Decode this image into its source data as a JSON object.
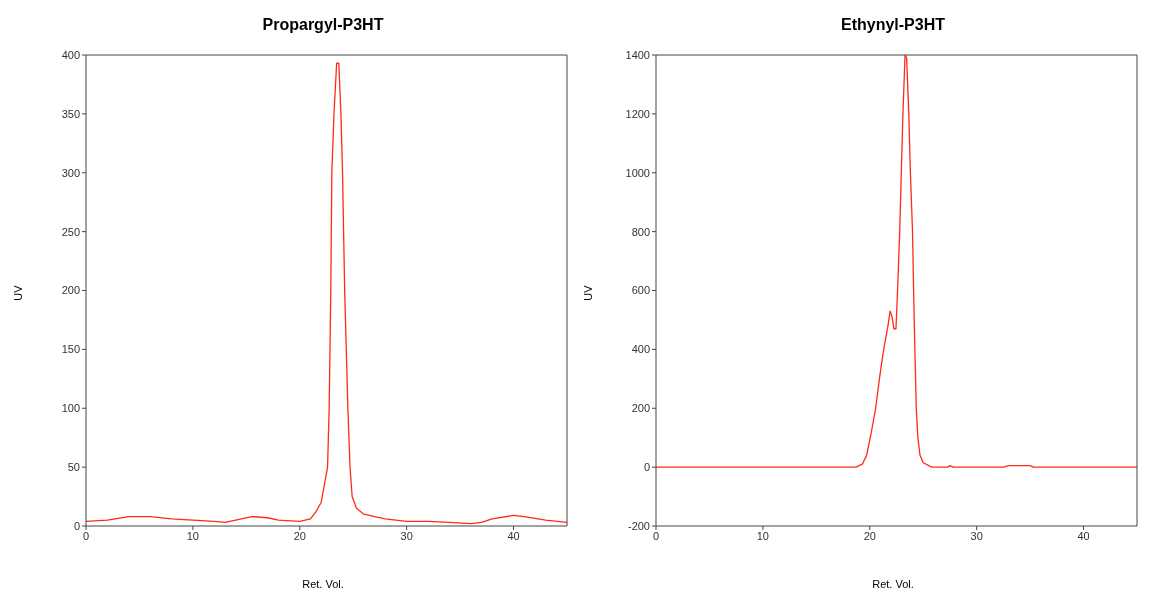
{
  "chart_data": [
    {
      "type": "line",
      "title": "Propargyl-P3HT",
      "xlabel": "Ret. Vol.",
      "ylabel": "UV",
      "xlim": [
        0,
        45
      ],
      "xticks": [
        0,
        10,
        20,
        30,
        40
      ],
      "ylim": [
        0,
        400
      ],
      "yticks": [
        0,
        50,
        100,
        150,
        200,
        250,
        300,
        350,
        400
      ],
      "marker": "none",
      "line_style": "solid",
      "series": [
        {
          "color": "#ff2a1a",
          "x": [
            0,
            2,
            4,
            6,
            8,
            10,
            12,
            13,
            14,
            15.5,
            17,
            18,
            20,
            21,
            21.5,
            22,
            22.3,
            22.6,
            22.75,
            22.9,
            23.0,
            23.2,
            23.45,
            23.65,
            23.85,
            24.0,
            24.2,
            24.5,
            24.7,
            24.9,
            25.3,
            26,
            27,
            28,
            30,
            32,
            34,
            36,
            37,
            38,
            40,
            41,
            43,
            45
          ],
          "values": [
            4,
            5,
            8,
            8,
            6,
            5,
            4,
            3,
            5,
            8,
            7,
            5,
            4,
            6,
            12,
            20,
            35,
            50,
            100,
            200,
            300,
            350,
            393,
            393,
            350,
            300,
            200,
            100,
            50,
            25,
            15,
            10,
            8,
            6,
            4,
            4,
            3,
            2,
            3,
            6,
            9,
            8,
            5,
            3
          ]
        }
      ]
    },
    {
      "type": "line",
      "title": "Ethynyl-P3HT",
      "xlabel": "Ret. Vol.",
      "ylabel": "UV",
      "xlim": [
        0,
        45
      ],
      "xticks": [
        0,
        10,
        20,
        30,
        40
      ],
      "ylim": [
        -200,
        1400
      ],
      "yticks": [
        -200,
        0,
        200,
        400,
        600,
        800,
        1000,
        1200,
        1400
      ],
      "marker": "none",
      "line_style": "solid",
      "series": [
        {
          "color": "#ff2a1a",
          "x": [
            0,
            10,
            18.7,
            19.3,
            19.7,
            20.1,
            20.55,
            20.9,
            21.3,
            21.7,
            21.9,
            22.1,
            22.25,
            22.45,
            22.6,
            22.8,
            22.95,
            23.1,
            23.3,
            23.45,
            23.65,
            23.8,
            24.0,
            24.1,
            24.25,
            24.35,
            24.5,
            24.7,
            25.0,
            25.8,
            27.3,
            27.5,
            27.8,
            32.5,
            33,
            35,
            35.3,
            45
          ],
          "values": [
            0,
            0,
            0,
            10,
            40,
            110,
            200,
            300,
            400,
            480,
            530,
            510,
            470,
            470,
            600,
            800,
            1000,
            1200,
            1400,
            1390,
            1200,
            1000,
            800,
            600,
            350,
            200,
            100,
            40,
            15,
            0,
            0,
            5,
            0,
            0,
            5,
            5,
            0,
            0
          ]
        }
      ]
    }
  ]
}
